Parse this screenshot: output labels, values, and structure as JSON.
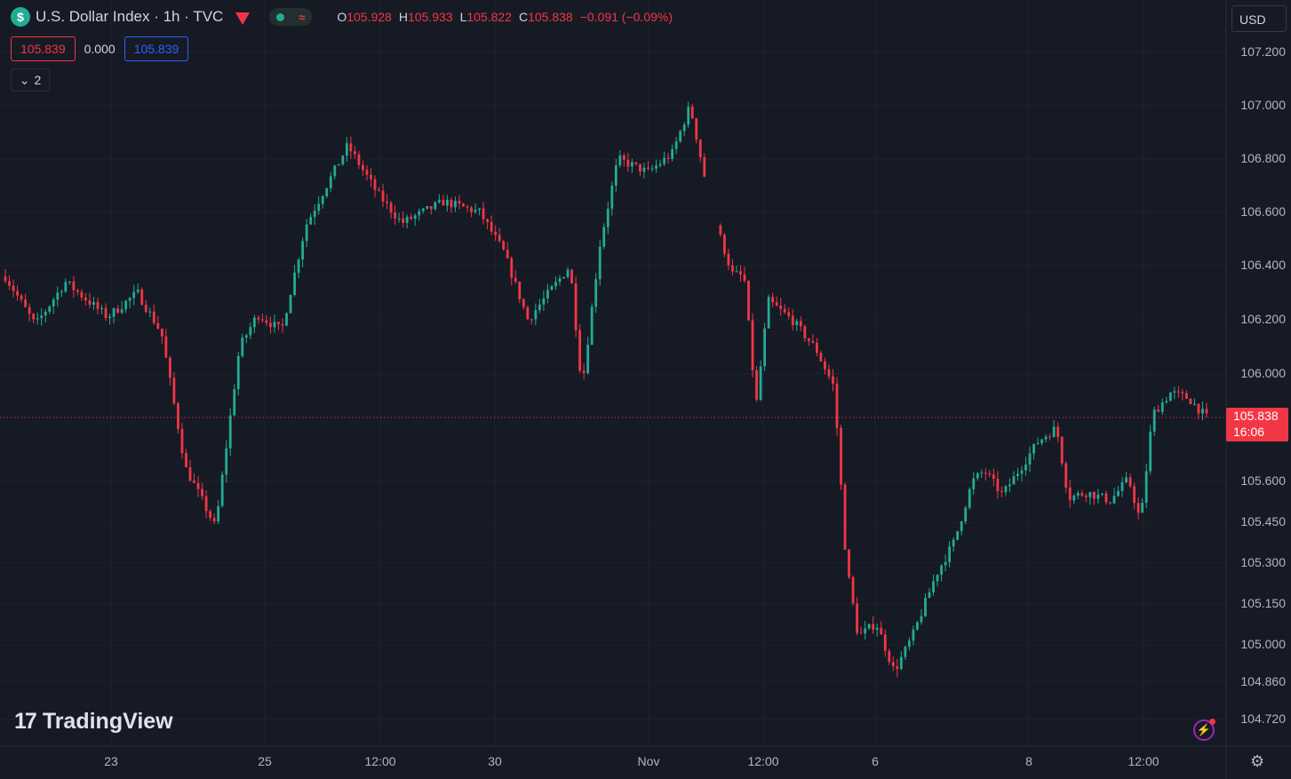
{
  "legend": {
    "symbol_icon": "$",
    "title": "U.S. Dollar Index · 1h · TVC",
    "o_label": "O",
    "o_value": "105.928",
    "h_label": "H",
    "h_value": "105.933",
    "l_label": "L",
    "l_value": "105.822",
    "c_label": "C",
    "c_value": "105.838",
    "change": "−0.091 (−0.09%)"
  },
  "sell_price": "105.839",
  "spread": "0.000",
  "buy_price": "105.839",
  "indicator_count": "2",
  "currency": "USD",
  "last_price_label": "105.838",
  "countdown": "16:06",
  "brand": "TradingView",
  "colors": {
    "up": "#22ab94",
    "down": "#f23645",
    "background": "#161a25",
    "grid": "#1e222d"
  },
  "chart_data": {
    "type": "candlestick",
    "interval": "1h",
    "y_ticks": [
      107.2,
      107.0,
      106.8,
      106.6,
      106.4,
      106.2,
      106.0,
      105.6,
      105.45,
      105.3,
      105.15,
      105.0,
      104.86,
      104.72
    ],
    "y_tick_labels": [
      "107.200",
      "107.000",
      "106.800",
      "106.600",
      "106.400",
      "106.200",
      "106.000",
      "105.600",
      "105.450",
      "105.300",
      "105.150",
      "105.000",
      "104.860",
      "104.720"
    ],
    "x_tick_labels": [
      "23",
      "25",
      "12:00",
      "30",
      "Nov",
      "12:00",
      "6",
      "8",
      "12:00"
    ],
    "last_price": 105.838,
    "path_points": [
      [
        0,
        106.36
      ],
      [
        0.025,
        106.18
      ],
      [
        0.05,
        106.34
      ],
      [
        0.085,
        106.21
      ],
      [
        0.11,
        106.3
      ],
      [
        0.13,
        106.15
      ],
      [
        0.15,
        105.65
      ],
      [
        0.165,
        105.52
      ],
      [
        0.175,
        105.43
      ],
      [
        0.195,
        106.1
      ],
      [
        0.21,
        106.22
      ],
      [
        0.23,
        106.16
      ],
      [
        0.25,
        106.55
      ],
      [
        0.265,
        106.68
      ],
      [
        0.285,
        106.85
      ],
      [
        0.31,
        106.67
      ],
      [
        0.33,
        106.56
      ],
      [
        0.365,
        106.64
      ],
      [
        0.395,
        106.6
      ],
      [
        0.415,
        106.45
      ],
      [
        0.435,
        106.2
      ],
      [
        0.47,
        106.4
      ],
      [
        0.48,
        105.95
      ],
      [
        0.495,
        106.48
      ],
      [
        0.51,
        106.8
      ],
      [
        0.535,
        106.75
      ],
      [
        0.555,
        106.82
      ],
      [
        0.57,
        107.0
      ],
      [
        0.585,
        106.67
      ],
      [
        0.592,
        106.55
      ],
      [
        0.605,
        106.37
      ],
      [
        0.615,
        106.36
      ],
      [
        0.625,
        105.88
      ],
      [
        0.635,
        106.27
      ],
      [
        0.655,
        106.2
      ],
      [
        0.675,
        106.09
      ],
      [
        0.69,
        105.95
      ],
      [
        0.7,
        105.3
      ],
      [
        0.71,
        105.03
      ],
      [
        0.725,
        105.08
      ],
      [
        0.74,
        104.9
      ],
      [
        0.755,
        105.03
      ],
      [
        0.775,
        105.26
      ],
      [
        0.79,
        105.38
      ],
      [
        0.805,
        105.6
      ],
      [
        0.815,
        105.64
      ],
      [
        0.83,
        105.55
      ],
      [
        0.86,
        105.75
      ],
      [
        0.875,
        105.8
      ],
      [
        0.885,
        105.54
      ],
      [
        0.9,
        105.56
      ],
      [
        0.92,
        105.53
      ],
      [
        0.935,
        105.61
      ],
      [
        0.945,
        105.45
      ],
      [
        0.955,
        105.85
      ],
      [
        0.97,
        105.93
      ],
      [
        0.985,
        105.91
      ],
      [
        1.0,
        105.838
      ]
    ],
    "gaps": [
      0.588
    ]
  }
}
